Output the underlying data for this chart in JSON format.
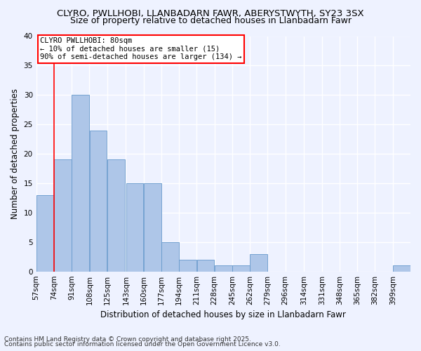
{
  "title1": "CLYRO, PWLLHOBI, LLANBADARN FAWR, ABERYSTWYTH, SY23 3SX",
  "title2": "Size of property relative to detached houses in Llanbadarn Fawr",
  "xlabel": "Distribution of detached houses by size in Llanbadarn Fawr",
  "ylabel": "Number of detached properties",
  "bins": [
    57,
    74,
    91,
    108,
    125,
    143,
    160,
    177,
    194,
    211,
    228,
    245,
    262,
    279,
    296,
    314,
    331,
    348,
    365,
    382,
    399
  ],
  "values": [
    13,
    19,
    30,
    24,
    19,
    15,
    15,
    5,
    2,
    2,
    1,
    1,
    3,
    0,
    0,
    0,
    0,
    0,
    0,
    0,
    1
  ],
  "bar_color": "#aec6e8",
  "bar_edge_color": "#6699cc",
  "red_line_x": 74,
  "annotation_title": "CLYRO PWLLHOBI: 80sqm",
  "annotation_line2": "← 10% of detached houses are smaller (15)",
  "annotation_line3": "90% of semi-detached houses are larger (134) →",
  "ylim": [
    0,
    40
  ],
  "yticks": [
    0,
    5,
    10,
    15,
    20,
    25,
    30,
    35,
    40
  ],
  "footnote1": "Contains HM Land Registry data © Crown copyright and database right 2025.",
  "footnote2": "Contains public sector information licensed under the Open Government Licence v3.0.",
  "background_color": "#eef2ff",
  "grid_color": "#ffffff",
  "title_fontsize": 9.5,
  "subtitle_fontsize": 9,
  "axis_label_fontsize": 8.5,
  "tick_fontsize": 7.5,
  "annotation_fontsize": 7.5,
  "footnote_fontsize": 6.5
}
